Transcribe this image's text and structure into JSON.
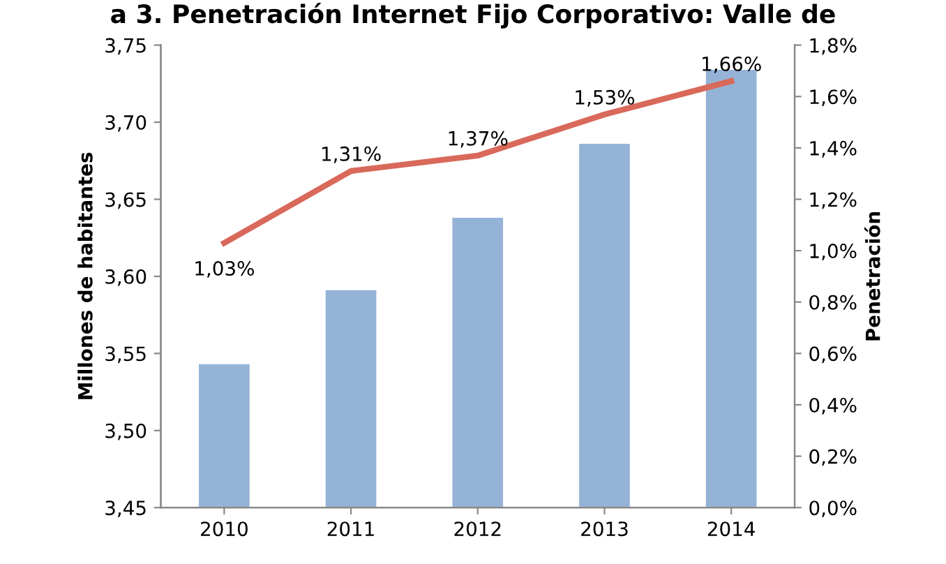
{
  "chart_data": {
    "type": "bar",
    "title": "a 3. Penetración Internet Fijo Corporativo: Valle de",
    "categories": [
      "2010",
      "2011",
      "2012",
      "2013",
      "2014"
    ],
    "ylabel": "Millones de habitantes",
    "y2label": "Penetración",
    "series": [
      {
        "color": "#95b3d7",
        "values": [
          3.543,
          3.591,
          3.638,
          3.686,
          3.734
        ]
      },
      {
        "type": "line",
        "axis": "y2",
        "color": "#d9695a",
        "values": [
          1.03,
          1.31,
          1.37,
          1.53,
          1.66
        ],
        "value_labels": [
          "1,03%",
          "1,31%",
          "1,37%",
          "1,53%",
          "1,66%"
        ]
      }
    ],
    "ylim": [
      3.45,
      3.75
    ],
    "yticks": [
      {
        "value": 3.45,
        "label": "3,45"
      },
      {
        "value": 3.5,
        "label": "3,50"
      },
      {
        "value": 3.55,
        "label": "3,55"
      },
      {
        "value": 3.6,
        "label": "3,60"
      },
      {
        "value": 3.65,
        "label": "3,65"
      },
      {
        "value": 3.7,
        "label": "3,70"
      },
      {
        "value": 3.75,
        "label": "3,75"
      }
    ],
    "y2lim": [
      0,
      1.8
    ],
    "y2ticks": [
      {
        "value": 0,
        "label": "0,0%"
      },
      {
        "value": 0.2,
        "label": "0,2%"
      },
      {
        "value": 0.4,
        "label": "0,4%"
      },
      {
        "value": 0.6,
        "label": "0,6%"
      },
      {
        "value": 0.8,
        "label": "0,8%"
      },
      {
        "value": 1.0,
        "label": "1,0%"
      },
      {
        "value": 1.2,
        "label": "1,2%"
      },
      {
        "value": 1.4,
        "label": "1,4%"
      },
      {
        "value": 1.6,
        "label": "1,6%"
      },
      {
        "value": 1.8,
        "label": "1,8%"
      }
    ],
    "grid": false,
    "legend": false,
    "marker": "none",
    "line_style": "solid"
  }
}
